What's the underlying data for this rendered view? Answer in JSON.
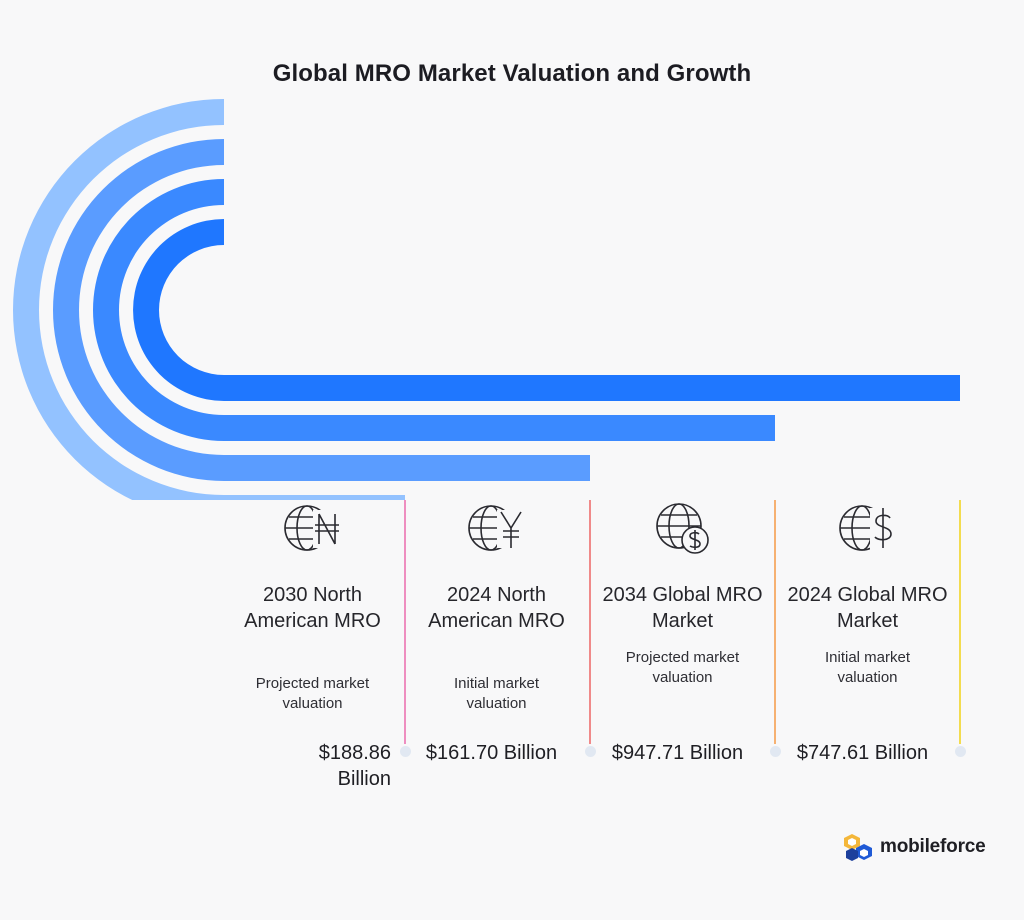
{
  "title": "Global MRO Market Valuation and Growth",
  "colors": {
    "bar_1": "#1f77ff",
    "bar_2": "#3a89ff",
    "bar_3": "#5a9cff",
    "bar_4": "#93c2ff",
    "sep_1": "#ee8ec0",
    "sep_2": "#f08a8a",
    "sep_3": "#f6b172",
    "sep_4": "#f3dc4f"
  },
  "chart_data": {
    "type": "bar",
    "orientation": "horizontal",
    "categories": [
      "2024 Global MRO Market",
      "2034 Global MRO Market",
      "2024 North American MRO",
      "2030 North American MRO"
    ],
    "values": [
      747.61,
      947.71,
      161.7,
      188.86
    ],
    "unit": "Billion USD"
  },
  "items": [
    {
      "name": "2030 North American MRO",
      "desc": "Projected market valuation",
      "value": "$188.86 Billion",
      "icon": "globe-naira-icon"
    },
    {
      "name": "2024 North American MRO",
      "desc": "Initial market valuation",
      "value": "$161.70 Billion",
      "icon": "globe-yen-icon"
    },
    {
      "name": "2034 Global MRO Market",
      "desc": "Projected market valuation",
      "value": "$947.71 Billion",
      "icon": "globe-dollar-coin-icon"
    },
    {
      "name": "2024 Global MRO Market",
      "desc": "Initial market valuation",
      "value": "$747.61 Billion",
      "icon": "globe-dollar-icon"
    }
  ],
  "logo": {
    "text": "mobileforce"
  }
}
